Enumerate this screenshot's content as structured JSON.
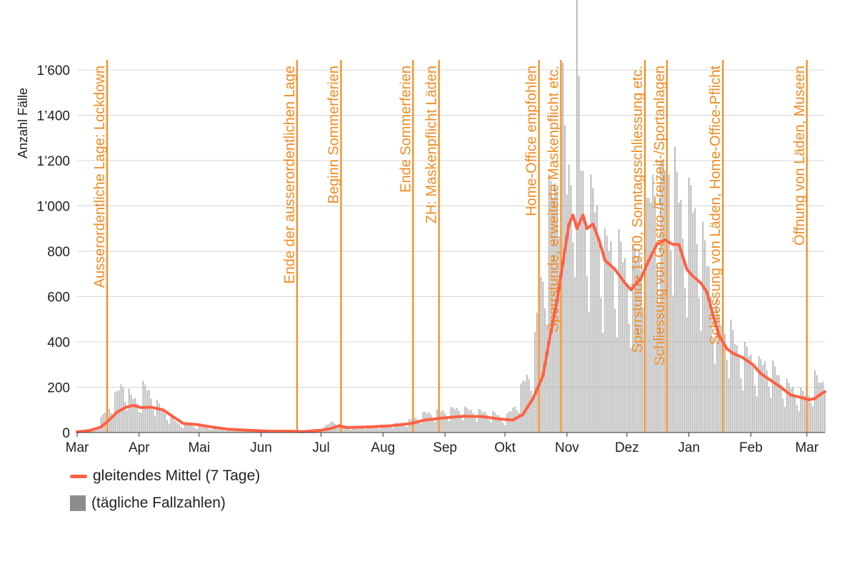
{
  "chart_data": {
    "type": "bar",
    "title": "",
    "xlabel": "",
    "ylabel": "Anzahl Fälle",
    "ylim": [
      0,
      1700
    ],
    "yticks": [
      0,
      200,
      400,
      600,
      800,
      1000,
      1200,
      1400,
      1600
    ],
    "ytick_labels": [
      "0",
      "200",
      "400",
      "600",
      "800",
      "1’000",
      "1’200",
      "1’400",
      "1’600"
    ],
    "x_start": "2020-03-01",
    "x_end": "2021-03-10",
    "xtick_labels": [
      {
        "label": "Mar",
        "date": "2020-03-01"
      },
      {
        "label": "Apr",
        "date": "2020-04-01"
      },
      {
        "label": "Mai",
        "date": "2020-05-01"
      },
      {
        "label": "Jun",
        "date": "2020-06-01"
      },
      {
        "label": "Jul",
        "date": "2020-07-01"
      },
      {
        "label": "Aug",
        "date": "2020-08-01"
      },
      {
        "label": "Sep",
        "date": "2020-09-01"
      },
      {
        "label": "Okt",
        "date": "2020-10-01"
      },
      {
        "label": "Nov",
        "date": "2020-11-01"
      },
      {
        "label": "Dez",
        "date": "2020-12-01"
      },
      {
        "label": "Jan",
        "date": "2021-01-01"
      },
      {
        "label": "Feb",
        "date": "2021-02-01"
      },
      {
        "label": "Mar",
        "date": "2021-03-01"
      }
    ],
    "grid": true,
    "legend_position": "bottom-left",
    "series": [
      {
        "name": "gleitendes Mittel (7 Tage)",
        "type": "line",
        "color": "#ff6044",
        "points": [
          [
            "2020-03-01",
            3
          ],
          [
            "2020-03-07",
            8
          ],
          [
            "2020-03-13",
            25
          ],
          [
            "2020-03-17",
            55
          ],
          [
            "2020-03-21",
            90
          ],
          [
            "2020-03-25",
            110
          ],
          [
            "2020-03-29",
            120
          ],
          [
            "2020-04-02",
            110
          ],
          [
            "2020-04-07",
            112
          ],
          [
            "2020-04-13",
            100
          ],
          [
            "2020-04-18",
            70
          ],
          [
            "2020-04-23",
            40
          ],
          [
            "2020-04-30",
            35
          ],
          [
            "2020-05-07",
            25
          ],
          [
            "2020-05-15",
            15
          ],
          [
            "2020-05-25",
            10
          ],
          [
            "2020-06-05",
            6
          ],
          [
            "2020-06-15",
            6
          ],
          [
            "2020-06-22",
            4
          ],
          [
            "2020-07-01",
            10
          ],
          [
            "2020-07-06",
            18
          ],
          [
            "2020-07-10",
            30
          ],
          [
            "2020-07-14",
            22
          ],
          [
            "2020-07-25",
            25
          ],
          [
            "2020-08-05",
            30
          ],
          [
            "2020-08-15",
            40
          ],
          [
            "2020-08-22",
            55
          ],
          [
            "2020-09-01",
            65
          ],
          [
            "2020-09-10",
            72
          ],
          [
            "2020-09-20",
            70
          ],
          [
            "2020-09-28",
            60
          ],
          [
            "2020-10-05",
            55
          ],
          [
            "2020-10-10",
            80
          ],
          [
            "2020-10-15",
            150
          ],
          [
            "2020-10-20",
            250
          ],
          [
            "2020-10-23",
            400
          ],
          [
            "2020-10-27",
            580
          ],
          [
            "2020-10-30",
            750
          ],
          [
            "2020-11-02",
            920
          ],
          [
            "2020-11-04",
            960
          ],
          [
            "2020-11-06",
            900
          ],
          [
            "2020-11-09",
            960
          ],
          [
            "2020-11-11",
            900
          ],
          [
            "2020-11-14",
            920
          ],
          [
            "2020-11-17",
            850
          ],
          [
            "2020-11-20",
            760
          ],
          [
            "2020-11-25",
            720
          ],
          [
            "2020-11-30",
            660
          ],
          [
            "2020-12-03",
            630
          ],
          [
            "2020-12-08",
            680
          ],
          [
            "2020-12-12",
            760
          ],
          [
            "2020-12-16",
            830
          ],
          [
            "2020-12-20",
            850
          ],
          [
            "2020-12-24",
            830
          ],
          [
            "2020-12-27",
            830
          ],
          [
            "2020-12-31",
            720
          ],
          [
            "2021-01-03",
            690
          ],
          [
            "2021-01-07",
            660
          ],
          [
            "2021-01-10",
            620
          ],
          [
            "2021-01-13",
            520
          ],
          [
            "2021-01-16",
            430
          ],
          [
            "2021-01-20",
            370
          ],
          [
            "2021-01-23",
            350
          ],
          [
            "2021-01-28",
            330
          ],
          [
            "2021-02-02",
            300
          ],
          [
            "2021-02-06",
            260
          ],
          [
            "2021-02-11",
            230
          ],
          [
            "2021-02-16",
            200
          ],
          [
            "2021-02-21",
            165
          ],
          [
            "2021-02-26",
            155
          ],
          [
            "2021-03-02",
            145
          ],
          [
            "2021-03-05",
            150
          ],
          [
            "2021-03-08",
            170
          ],
          [
            "2021-03-10",
            180
          ]
        ]
      },
      {
        "name": "(tägliche Fallzahlen)",
        "type": "bar",
        "color": "#8c8c8c",
        "points": [
          [
            "2020-03-01",
            5
          ],
          [
            "2020-03-10",
            20
          ],
          [
            "2020-03-17",
            110
          ],
          [
            "2020-03-21",
            160
          ],
          [
            "2020-03-24",
            210
          ],
          [
            "2020-03-28",
            145
          ],
          [
            "2020-04-01",
            130
          ],
          [
            "2020-04-03",
            190
          ],
          [
            "2020-04-06",
            170
          ],
          [
            "2020-04-10",
            120
          ],
          [
            "2020-04-15",
            80
          ],
          [
            "2020-04-20",
            40
          ],
          [
            "2020-04-27",
            30
          ],
          [
            "2020-05-05",
            25
          ],
          [
            "2020-05-15",
            12
          ],
          [
            "2020-05-25",
            10
          ],
          [
            "2020-06-05",
            6
          ],
          [
            "2020-06-20",
            5
          ],
          [
            "2020-07-01",
            12
          ],
          [
            "2020-07-08",
            55
          ],
          [
            "2020-07-10",
            20
          ],
          [
            "2020-07-20",
            25
          ],
          [
            "2020-08-01",
            30
          ],
          [
            "2020-08-12",
            40
          ],
          [
            "2020-08-22",
            80
          ],
          [
            "2020-09-01",
            90
          ],
          [
            "2020-09-08",
            100
          ],
          [
            "2020-09-15",
            90
          ],
          [
            "2020-09-25",
            80
          ],
          [
            "2020-10-01",
            60
          ],
          [
            "2020-10-05",
            100
          ],
          [
            "2020-10-10",
            200
          ],
          [
            "2020-10-15",
            280
          ],
          [
            "2020-10-18",
            550
          ],
          [
            "2020-10-20",
            700
          ],
          [
            "2020-10-23",
            950
          ],
          [
            "2020-10-26",
            1000
          ],
          [
            "2020-10-28",
            1240
          ],
          [
            "2020-10-30",
            1360
          ],
          [
            "2020-11-01",
            1000
          ],
          [
            "2020-11-03",
            1150
          ],
          [
            "2020-11-05",
            1250
          ],
          [
            "2020-11-06",
            1640
          ],
          [
            "2020-11-08",
            1100
          ],
          [
            "2020-11-10",
            1000
          ],
          [
            "2020-11-13",
            950
          ],
          [
            "2020-11-17",
            900
          ],
          [
            "2020-11-20",
            750
          ],
          [
            "2020-11-25",
            780
          ],
          [
            "2020-11-30",
            700
          ],
          [
            "2020-12-03",
            680
          ],
          [
            "2020-12-08",
            750
          ],
          [
            "2020-12-12",
            900
          ],
          [
            "2020-12-15",
            1100
          ],
          [
            "2020-12-18",
            1000
          ],
          [
            "2020-12-22",
            1200
          ],
          [
            "2020-12-26",
            1000
          ],
          [
            "2020-12-29",
            900
          ],
          [
            "2021-01-02",
            950
          ],
          [
            "2021-01-06",
            850
          ],
          [
            "2021-01-10",
            700
          ],
          [
            "2021-01-13",
            600
          ],
          [
            "2021-01-16",
            450
          ],
          [
            "2021-01-20",
            460
          ],
          [
            "2021-01-25",
            350
          ],
          [
            "2021-01-30",
            330
          ],
          [
            "2021-02-05",
            280
          ],
          [
            "2021-02-10",
            290
          ],
          [
            "2021-02-15",
            230
          ],
          [
            "2021-02-20",
            190
          ],
          [
            "2021-02-25",
            170
          ],
          [
            "2021-03-01",
            150
          ],
          [
            "2021-03-05",
            230
          ],
          [
            "2021-03-08",
            200
          ],
          [
            "2021-03-10",
            270
          ]
        ]
      }
    ],
    "annotations": [
      {
        "date": "2020-03-16",
        "label": "Ausserordentliche Lage: Lockdown"
      },
      {
        "date": "2020-06-19",
        "label": "Ende der ausserordentlichen Lage"
      },
      {
        "date": "2020-07-11",
        "label": "Beginn Sommerferien"
      },
      {
        "date": "2020-08-16",
        "label": "Ende Sommerferien"
      },
      {
        "date": "2020-08-29",
        "label": "ZH: Maskenpflicht Läden"
      },
      {
        "date": "2020-10-18",
        "label": "Home-Office empfohlen"
      },
      {
        "date": "2020-10-29",
        "label": "Sperrstunde, erweiterte Maskenpflicht etc."
      },
      {
        "date": "2020-12-10",
        "label": "Sperrstunde 19.00, Sonntagsschliessung etc."
      },
      {
        "date": "2020-12-21",
        "label": "Schliessung von Gastro-/Freizeit-/Sportanlagen"
      },
      {
        "date": "2021-01-18",
        "label": "Schliessung von Läden, Home-Office-Pflicht"
      },
      {
        "date": "2021-03-01",
        "label": "Öffnung von Läden, Museen"
      }
    ],
    "colors": {
      "line": "#ff6044",
      "bars": "#8c8c8c",
      "events": "#f28a1e",
      "grid": "#d4d4d4"
    }
  }
}
